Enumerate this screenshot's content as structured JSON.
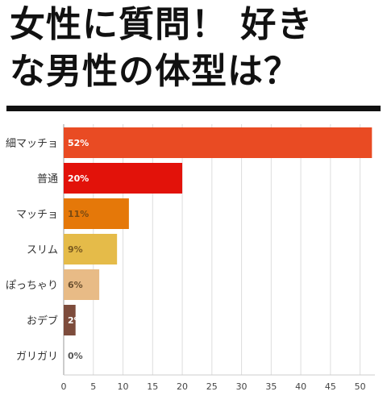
{
  "title": {
    "line1": "女性に質問！ 好き",
    "line2": "な男性の体型は？"
  },
  "chart_data": {
    "type": "bar",
    "orientation": "horizontal",
    "categories": [
      "細マッチョ",
      "普通",
      "マッチョ",
      "スリム",
      "ぽっちゃり",
      "おデブ",
      "ガリガリ"
    ],
    "values": [
      52,
      20,
      11,
      9,
      6,
      2,
      0
    ],
    "data_labels": [
      "52%",
      "20%",
      "11%",
      "9%",
      "6%",
      "2%",
      "0%"
    ],
    "bar_colors": [
      "#e94b23",
      "#e2120a",
      "#e57809",
      "#e5bb49",
      "#e8bb86",
      "#7d4c3c",
      "#aaaaaa"
    ],
    "label_colors": [
      "#ffffff",
      "#ffffff",
      "#7a4a12",
      "#7a5a20",
      "#6b5030",
      "#ffffff",
      "#555555"
    ],
    "xlim": [
      0,
      52.5
    ],
    "xticks": [
      0,
      5,
      10,
      15,
      20,
      25,
      30,
      35,
      40,
      45,
      50
    ],
    "grid": true,
    "title": "",
    "xlabel": "",
    "ylabel": ""
  }
}
